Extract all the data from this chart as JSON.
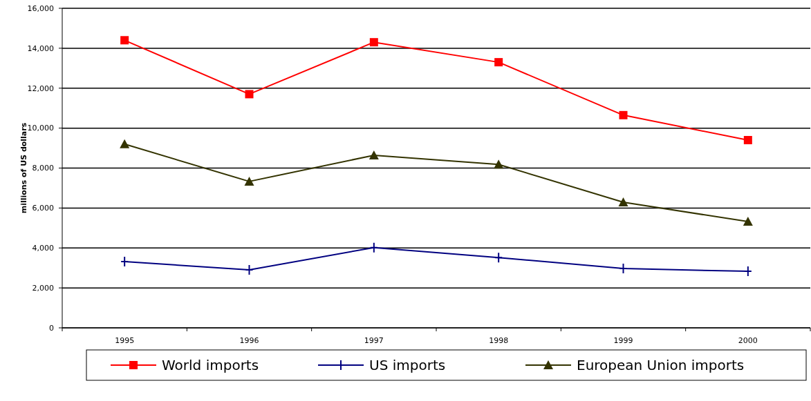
{
  "chart_data": {
    "type": "line",
    "ylabel": "millions of US dollars",
    "categories": [
      "1995",
      "1996",
      "1997",
      "1998",
      "1999",
      "2000"
    ],
    "series": [
      {
        "name": "World imports",
        "color": "#ff0000",
        "marker": "square",
        "values": [
          14400,
          11700,
          14300,
          13300,
          10650,
          9400
        ]
      },
      {
        "name": "US imports",
        "color": "#000080",
        "marker": "cross",
        "values": [
          3320,
          2900,
          4020,
          3520,
          2970,
          2830
        ]
      },
      {
        "name": "European Union imports",
        "color": "#333300",
        "marker": "triangle",
        "values": [
          9200,
          7330,
          8640,
          8180,
          6290,
          5320
        ]
      }
    ],
    "ylim": [
      0,
      16000
    ],
    "yticks": [
      {
        "value": 0,
        "label": "0"
      },
      {
        "value": 2000,
        "label": "2,000"
      },
      {
        "value": 4000,
        "label": "4,000"
      },
      {
        "value": 6000,
        "label": "6,000"
      },
      {
        "value": 8000,
        "label": "8,000"
      },
      {
        "value": 10000,
        "label": "10,000"
      },
      {
        "value": 12000,
        "label": "12,000"
      },
      {
        "value": 14000,
        "label": "14,000"
      },
      {
        "value": 16000,
        "label": "16,000"
      }
    ],
    "grid": "y",
    "legend": "bottom"
  }
}
